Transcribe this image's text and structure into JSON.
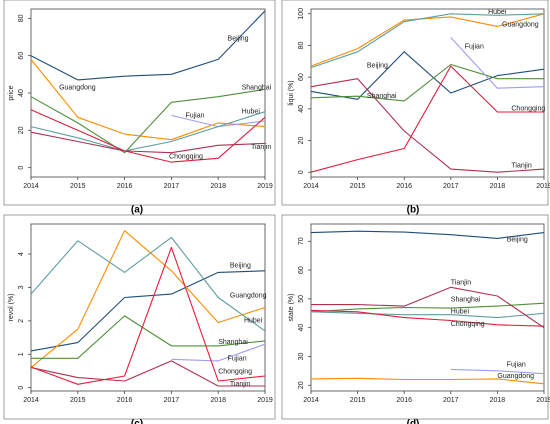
{
  "colors": {
    "Beijing": "#1f4e79",
    "Guangdong": "#ff8c00",
    "Shanghai": "#4f8f3a",
    "Fujian": "#9e9ef0",
    "Hubei": "#5f9ea0",
    "Chongqing": "#e01e3c",
    "Tianjin": "#b03050",
    "axis": "#444444",
    "frame": "#888888"
  },
  "chart_data": [
    {
      "type": "line",
      "panel_label": "(a)",
      "xlabel": "",
      "ylabel": "price",
      "x": [
        2014,
        2015,
        2016,
        2017,
        2018,
        2019
      ],
      "ylim": [
        -5,
        85
      ],
      "yticks": [
        0,
        20,
        40,
        60,
        80
      ],
      "grid": false,
      "series": [
        {
          "name": "Beijing",
          "x": [
            2014,
            2015,
            2016,
            2017,
            2018,
            2019
          ],
          "values": [
            60,
            47,
            49,
            50,
            58,
            84
          ]
        },
        {
          "name": "Guangdong",
          "x": [
            2014,
            2015,
            2016,
            2017,
            2018,
            2019
          ],
          "values": [
            58,
            27,
            18,
            15,
            24,
            22
          ]
        },
        {
          "name": "Shanghai",
          "x": [
            2014,
            2015,
            2016,
            2017,
            2018,
            2019
          ],
          "values": [
            38,
            24,
            8,
            35,
            38,
            42
          ]
        },
        {
          "name": "Fujian",
          "x": [
            2017,
            2018,
            2019
          ],
          "values": [
            28,
            22,
            25
          ]
        },
        {
          "name": "Hubei",
          "x": [
            2014,
            2015,
            2016,
            2017,
            2018,
            2019
          ],
          "values": [
            22,
            16,
            9,
            14,
            22,
            30
          ]
        },
        {
          "name": "Chongqing",
          "x": [
            2014,
            2015,
            2016,
            2017,
            2018,
            2019
          ],
          "values": [
            31,
            20,
            9,
            3,
            5,
            27
          ]
        },
        {
          "name": "Tianjin",
          "x": [
            2014,
            2015,
            2016,
            2017,
            2018,
            2019
          ],
          "values": [
            19,
            14,
            9,
            8,
            12,
            13
          ]
        }
      ],
      "labels": [
        {
          "series": "Beijing",
          "text": "Beijing",
          "x": 2018.2,
          "y": 68
        },
        {
          "series": "Guangdong",
          "text": "Guangdong",
          "x": 2014.6,
          "y": 42
        },
        {
          "series": "Shanghai",
          "text": "Shanghai",
          "x": 2018.5,
          "y": 42
        },
        {
          "series": "Fujian",
          "text": "Fujian",
          "x": 2017.3,
          "y": 27
        },
        {
          "series": "Hubei",
          "text": "Hubei",
          "x": 2018.5,
          "y": 29
        },
        {
          "series": "Chongqing",
          "text": "Chongqing",
          "x": 2016.95,
          "y": 5
        },
        {
          "series": "Tianjin",
          "text": "Tianjin",
          "x": 2018.7,
          "y": 10
        }
      ]
    },
    {
      "type": "line",
      "panel_label": "(b)",
      "xlabel": "",
      "ylabel": "liqui (%)",
      "x": [
        2014,
        2015,
        2016,
        2017,
        2018,
        2019
      ],
      "ylim": [
        -3,
        103
      ],
      "yticks": [
        0,
        20,
        40,
        60,
        80,
        100
      ],
      "grid": false,
      "series": [
        {
          "name": "Beijing",
          "x": [
            2014,
            2015,
            2016,
            2017,
            2018,
            2019
          ],
          "values": [
            51,
            46,
            76,
            50,
            61,
            65
          ]
        },
        {
          "name": "Guangdong",
          "x": [
            2014,
            2015,
            2016,
            2017,
            2018,
            2019
          ],
          "values": [
            67,
            78,
            96,
            98,
            92,
            100
          ]
        },
        {
          "name": "Shanghai",
          "x": [
            2014,
            2015,
            2016,
            2017,
            2018,
            2019
          ],
          "values": [
            47,
            48,
            45,
            68,
            59,
            59
          ]
        },
        {
          "name": "Fujian",
          "x": [
            2017,
            2018,
            2019
          ],
          "values": [
            85,
            53,
            54
          ]
        },
        {
          "name": "Hubei",
          "x": [
            2014,
            2015,
            2016,
            2017,
            2018,
            2019
          ],
          "values": [
            66,
            76,
            95,
            100,
            99,
            100
          ]
        },
        {
          "name": "Chongqing",
          "x": [
            2014,
            2015,
            2016,
            2017,
            2018,
            2019
          ],
          "values": [
            0,
            8,
            15,
            67,
            38,
            38
          ]
        },
        {
          "name": "Tianjin",
          "x": [
            2014,
            2015,
            2016,
            2017,
            2018,
            2019
          ],
          "values": [
            54,
            59,
            26,
            2,
            0,
            2
          ]
        }
      ],
      "labels": [
        {
          "series": "Hubei",
          "text": "Hubei",
          "x": 2017.8,
          "y": 100
        },
        {
          "series": "Guangdong",
          "text": "Guangdong",
          "x": 2018.1,
          "y": 92
        },
        {
          "series": "Fujian",
          "text": "Fujian",
          "x": 2017.3,
          "y": 78
        },
        {
          "series": "Beijing",
          "text": "Beijing",
          "x": 2015.2,
          "y": 66
        },
        {
          "series": "Shanghai",
          "text": "Shanghai",
          "x": 2015.2,
          "y": 47
        },
        {
          "series": "Chongqing",
          "text": "Chongqing",
          "x": 2018.3,
          "y": 39
        },
        {
          "series": "Tianjin",
          "text": "Tianjin",
          "x": 2018.3,
          "y": 3
        }
      ]
    },
    {
      "type": "line",
      "panel_label": "(c)",
      "xlabel": "",
      "ylabel": "revol (%)",
      "x": [
        2014,
        2015,
        2016,
        2017,
        2018,
        2019
      ],
      "ylim": [
        -0.1,
        4.9
      ],
      "yticks": [
        0,
        1,
        2,
        3,
        4
      ],
      "grid": false,
      "series": [
        {
          "name": "Beijing",
          "x": [
            2014,
            2015,
            2016,
            2017,
            2018,
            2019
          ],
          "values": [
            1.1,
            1.35,
            2.7,
            2.8,
            3.45,
            3.5
          ]
        },
        {
          "name": "Guangdong",
          "x": [
            2014,
            2015,
            2016,
            2017,
            2018,
            2019
          ],
          "values": [
            0.6,
            1.75,
            4.7,
            3.5,
            1.95,
            2.4
          ]
        },
        {
          "name": "Shanghai",
          "x": [
            2014,
            2015,
            2016,
            2017,
            2018,
            2019
          ],
          "values": [
            0.88,
            0.88,
            2.15,
            1.25,
            1.25,
            1.4
          ]
        },
        {
          "name": "Fujian",
          "x": [
            2017,
            2018,
            2019
          ],
          "values": [
            0.85,
            0.8,
            1.3
          ]
        },
        {
          "name": "Hubei",
          "x": [
            2014,
            2015,
            2016,
            2017,
            2018,
            2019
          ],
          "values": [
            2.8,
            4.4,
            3.45,
            4.5,
            2.7,
            1.7
          ]
        },
        {
          "name": "Chongqing",
          "x": [
            2014,
            2015,
            2016,
            2017,
            2018,
            2019
          ],
          "values": [
            0.62,
            0.1,
            0.35,
            4.2,
            0.2,
            0.35
          ]
        },
        {
          "name": "Tianjin",
          "x": [
            2014,
            2015,
            2016,
            2017,
            2018,
            2019
          ],
          "values": [
            0.6,
            0.3,
            0.2,
            0.8,
            0.05,
            0.05
          ]
        }
      ],
      "labels": [
        {
          "series": "Beijing",
          "text": "Beijing",
          "x": 2018.25,
          "y": 3.6
        },
        {
          "series": "Guangdong",
          "text": "Guangdong",
          "x": 2018.25,
          "y": 2.7
        },
        {
          "series": "Hubei",
          "text": "Hubei",
          "x": 2018.55,
          "y": 1.95
        },
        {
          "series": "Shanghai",
          "text": "Shanghai",
          "x": 2018.0,
          "y": 1.3
        },
        {
          "series": "Fujian",
          "text": "Fujian",
          "x": 2018.2,
          "y": 0.82
        },
        {
          "series": "Chongqing",
          "text": "Chongqing",
          "x": 2018.0,
          "y": 0.42
        },
        {
          "series": "Tianjin",
          "text": "Tianjin",
          "x": 2018.25,
          "y": 0.05
        }
      ]
    },
    {
      "type": "line",
      "panel_label": "(d)",
      "xlabel": "",
      "ylabel": "state (%)",
      "x": [
        2014,
        2015,
        2016,
        2017,
        2018,
        2019
      ],
      "ylim": [
        18,
        76
      ],
      "yticks": [
        20,
        30,
        40,
        50,
        60,
        70
      ],
      "grid": false,
      "series": [
        {
          "name": "Beijing",
          "x": [
            2014,
            2015,
            2016,
            2017,
            2018,
            2019
          ],
          "values": [
            73,
            73.5,
            73.2,
            72.3,
            71,
            73
          ]
        },
        {
          "name": "Guangdong",
          "x": [
            2014,
            2015,
            2016,
            2017,
            2018,
            2019
          ],
          "values": [
            22.2,
            22.4,
            22,
            22,
            22.2,
            20.5
          ]
        },
        {
          "name": "Shanghai",
          "x": [
            2014,
            2015,
            2016,
            2017,
            2018,
            2019
          ],
          "values": [
            45.5,
            46.5,
            47,
            46.8,
            47.5,
            48.5
          ]
        },
        {
          "name": "Fujian",
          "x": [
            2017,
            2018,
            2019
          ],
          "values": [
            25.5,
            25,
            24
          ]
        },
        {
          "name": "Hubei",
          "x": [
            2014,
            2015,
            2016,
            2017,
            2018,
            2019
          ],
          "values": [
            45.5,
            45,
            44.5,
            44.5,
            43.5,
            45
          ]
        },
        {
          "name": "Chongqing",
          "x": [
            2014,
            2015,
            2016,
            2017,
            2018,
            2019
          ],
          "values": [
            46,
            45.5,
            43.5,
            42.5,
            41,
            40.5
          ]
        },
        {
          "name": "Tianjin",
          "x": [
            2014,
            2015,
            2016,
            2017,
            2018,
            2019
          ],
          "values": [
            48,
            48,
            47.5,
            54,
            51,
            40
          ]
        }
      ],
      "labels": [
        {
          "series": "Beijing",
          "text": "Beijing",
          "x": 2018.2,
          "y": 70
        },
        {
          "series": "Tianjin",
          "text": "Tianjin",
          "x": 2017.0,
          "y": 55
        },
        {
          "series": "Shanghai",
          "text": "Shanghai",
          "x": 2017.0,
          "y": 49
        },
        {
          "series": "Hubei",
          "text": "Hubei",
          "x": 2017.0,
          "y": 45
        },
        {
          "series": "Chongqing",
          "text": "Chongqing",
          "x": 2017.0,
          "y": 40.5
        },
        {
          "series": "Fujian",
          "text": "Fujian",
          "x": 2018.2,
          "y": 26.5
        },
        {
          "series": "Guangdong",
          "text": "Guangdong",
          "x": 2018.0,
          "y": 22.5
        }
      ]
    }
  ]
}
